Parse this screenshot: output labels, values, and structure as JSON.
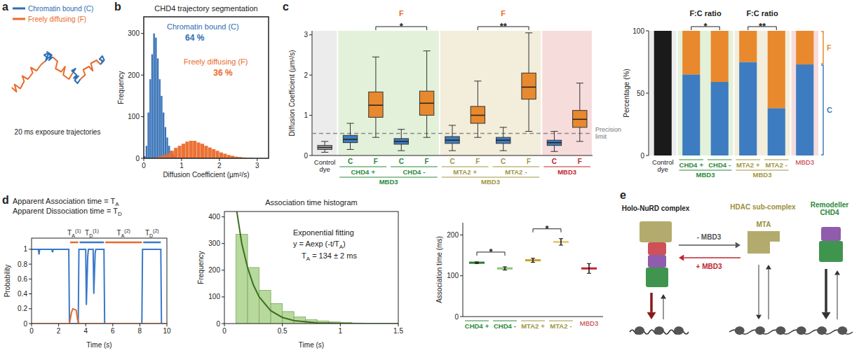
{
  "chart_data": [
    {
      "type": "trajectory",
      "panel_label": "a",
      "tick_labels": false,
      "xlim": [
        0,
        100
      ],
      "ylim": [
        0,
        80
      ],
      "series": [
        {
          "name": "Chromatin bound (C)",
          "color": "#2e6db4",
          "segments": [
            {
              "x": [
                37,
                40,
                36,
                41,
                38,
                43,
                39,
                44,
                41,
                45
              ],
              "y": [
                55,
                58,
                61,
                63,
                57,
                60,
                64,
                61,
                56,
                59
              ]
            },
            {
              "x": [
                66,
                69,
                65,
                70,
                67,
                72,
                68,
                71,
                74
              ],
              "y": [
                44,
                48,
                46,
                42,
                39,
                41,
                37,
                34,
                38
              ]
            },
            {
              "x": [
                95,
                98,
                94,
                97,
                99,
                96
              ],
              "y": [
                52,
                55,
                57,
                60,
                56,
                54
              ]
            }
          ]
        },
        {
          "name": "Freely diffusing (F)",
          "color": "#ea6a2a",
          "segments": [
            {
              "x": [
                2,
                7,
                5,
                11,
                15,
                13,
                19,
                24,
                22,
                28,
                33,
                37
              ],
              "y": [
                30,
                26,
                33,
                29,
                36,
                41,
                38,
                44,
                49,
                46,
                52,
                55
              ]
            },
            {
              "x": [
                45,
                50,
                48,
                54,
                58,
                56,
                62,
                66
              ],
              "y": [
                59,
                55,
                48,
                45,
                50,
                42,
                38,
                44
              ]
            },
            {
              "x": [
                74,
                79,
                77,
                83,
                87,
                85,
                91,
                95
              ],
              "y": [
                38,
                42,
                47,
                50,
                46,
                53,
                56,
                52
              ]
            }
          ]
        }
      ],
      "caption": "20 ms exposure trajectories"
    },
    {
      "type": "histogram",
      "panel_label": "b",
      "title": "CHD4 trajectory segmentation",
      "x_label": "Diffusion Coefficient (µm²/s)",
      "y_label": "Frequency",
      "xlim": [
        0,
        3.3
      ],
      "ylim": [
        0,
        340
      ],
      "xticks": [
        0,
        1,
        2,
        3
      ],
      "yticks": [
        0,
        100,
        200,
        300
      ],
      "series": [
        {
          "name": "Chromatin bound (C)",
          "share_label": "64 %",
          "color": "#2e6db4",
          "bins": [
            0,
            0.05,
            0.1,
            0.15,
            0.2,
            0.25,
            0.3,
            0.35,
            0.4,
            0.45,
            0.5,
            0.55,
            0.6,
            0.65,
            0.7,
            0.75,
            0.8,
            0.85,
            0.9
          ],
          "values": [
            5,
            30,
            110,
            190,
            250,
            300,
            290,
            240,
            190,
            150,
            110,
            75,
            50,
            30,
            18,
            10,
            5,
            2
          ]
        },
        {
          "name": "Freely diffusing (F)",
          "share_label": "36 %",
          "color": "#ea6a2a",
          "bins": [
            0.3,
            0.4,
            0.5,
            0.6,
            0.7,
            0.8,
            0.9,
            1,
            1.1,
            1.2,
            1.3,
            1.4,
            1.5,
            1.6,
            1.7,
            1.8,
            1.9,
            2,
            2.1,
            2.2,
            2.3,
            2.4,
            2.5,
            2.6,
            2.7,
            2.8,
            2.9
          ],
          "values": [
            3,
            5,
            8,
            12,
            18,
            25,
            30,
            35,
            40,
            42,
            42,
            38,
            35,
            30,
            26,
            22,
            18,
            14,
            11,
            8,
            6,
            4,
            3,
            2,
            1,
            1
          ]
        }
      ]
    },
    {
      "type": "box",
      "panel_label": "c",
      "y_label": "Diffusion Coefficient (µm²/s)",
      "ylim": [
        0,
        3.1
      ],
      "yticks": [
        0,
        1,
        2,
        3
      ],
      "reference_line": {
        "value": 0.55,
        "label": "Precision limit"
      },
      "groups": [
        {
          "label": "Control dye",
          "color": "#222222",
          "background": "#ececec",
          "subgroups": [
            {
              "sign": null,
              "boxes": [
                {
                  "label": null,
                  "color": "#a6a6a6",
                  "whisker_low": 0.08,
                  "q1": 0.15,
                  "median": 0.2,
                  "q3": 0.25,
                  "whisker_high": 0.35
                }
              ]
            }
          ]
        },
        {
          "label": "CHD4",
          "condition": "MBD3",
          "color": "#2a8a3a",
          "background": "#e3f1da",
          "significance": {
            "label": "F",
            "stars": "*",
            "color": "#ea6a2a"
          },
          "subgroups": [
            {
              "sign": "+",
              "boxes": [
                {
                  "label": "C",
                  "color": "#3d7cc0",
                  "whisker_low": 0.15,
                  "q1": 0.32,
                  "median": 0.4,
                  "q3": 0.5,
                  "whisker_high": 0.8
                },
                {
                  "label": "F",
                  "color": "#e8892e",
                  "whisker_low": 0.45,
                  "q1": 0.95,
                  "median": 1.25,
                  "q3": 1.58,
                  "whisker_high": 2.45
                }
              ]
            },
            {
              "sign": "-",
              "boxes": [
                {
                  "label": "C",
                  "color": "#3d7cc0",
                  "whisker_low": 0.12,
                  "q1": 0.28,
                  "median": 0.35,
                  "q3": 0.42,
                  "whisker_high": 0.65
                },
                {
                  "label": "F",
                  "color": "#e8892e",
                  "whisker_low": 0.45,
                  "q1": 1.0,
                  "median": 1.3,
                  "q3": 1.6,
                  "whisker_high": 2.6
                }
              ]
            }
          ]
        },
        {
          "label": "MTA2",
          "condition": "MBD3",
          "color": "#a0963f",
          "background": "#f2eedb",
          "significance": {
            "label": "F",
            "stars": "**",
            "color": "#ea6a2a"
          },
          "subgroups": [
            {
              "sign": "+",
              "boxes": [
                {
                  "label": "C",
                  "color": "#3d7cc0",
                  "whisker_low": 0.12,
                  "q1": 0.3,
                  "median": 0.38,
                  "q3": 0.47,
                  "whisker_high": 0.75
                },
                {
                  "label": "F",
                  "color": "#e8892e",
                  "whisker_low": 0.45,
                  "q1": 0.8,
                  "median": 1.0,
                  "q3": 1.22,
                  "whisker_high": 1.85
                }
              ]
            },
            {
              "sign": "-",
              "boxes": [
                {
                  "label": "C",
                  "color": "#3d7cc0",
                  "whisker_low": 0.12,
                  "q1": 0.3,
                  "median": 0.38,
                  "q3": 0.45,
                  "whisker_high": 0.7
                },
                {
                  "label": "F",
                  "color": "#e8892e",
                  "whisker_low": 0.6,
                  "q1": 1.4,
                  "median": 1.7,
                  "q3": 2.05,
                  "whisker_high": 3.05
                }
              ]
            }
          ]
        },
        {
          "label": "MBD3",
          "color": "#c0262d",
          "background": "#f7dcdc",
          "subgroups": [
            {
              "sign": null,
              "boxes": [
                {
                  "label": "C",
                  "color": "#3d7cc0",
                  "whisker_low": 0.1,
                  "q1": 0.25,
                  "median": 0.32,
                  "q3": 0.38,
                  "whisker_high": 0.6
                },
                {
                  "label": "F",
                  "color": "#e8892e",
                  "whisker_low": 0.35,
                  "q1": 0.7,
                  "median": 0.9,
                  "q3": 1.12,
                  "whisker_high": 1.8
                }
              ]
            }
          ]
        }
      ]
    },
    {
      "type": "bar",
      "stacked": true,
      "legend": "right",
      "y_label": "Percentage (%)",
      "ylim": [
        0,
        100
      ],
      "yticks": [
        0,
        50,
        100
      ],
      "series": [
        {
          "name": "C",
          "color": "#3d7cc0"
        },
        {
          "name": "F",
          "color": "#e8892e"
        }
      ],
      "groups": [
        {
          "label": "Control dye",
          "color": "#222222",
          "background": "#ececec",
          "subgroups": [
            {
              "sign": null,
              "values": [
                100
              ],
              "colors": [
                "#1a1a1a"
              ]
            }
          ]
        },
        {
          "label": "CHD4",
          "condition": "MBD3",
          "color": "#2a8a3a",
          "background": "#e3f1da",
          "significance": {
            "label": "F:C ratio",
            "stars": "*",
            "color": "#222222"
          },
          "subgroups": [
            {
              "sign": "+",
              "values": [
                65,
                35
              ]
            },
            {
              "sign": "-",
              "values": [
                59,
                41
              ]
            }
          ]
        },
        {
          "label": "MTA2",
          "condition": "MBD3",
          "color": "#a0963f",
          "background": "#f2eedb",
          "significance": {
            "label": "F:C ratio",
            "stars": "**",
            "color": "#222222"
          },
          "subgroups": [
            {
              "sign": "+",
              "values": [
                75,
                25
              ]
            },
            {
              "sign": "-",
              "values": [
                38,
                62
              ]
            }
          ]
        },
        {
          "label": "MBD3",
          "color": "#c0262d",
          "background": "#f7dcdc",
          "subgroups": [
            {
              "sign": null,
              "values": [
                73,
                27
              ]
            }
          ]
        }
      ]
    },
    {
      "type": "point",
      "y_label": "Association time (ms)",
      "ylim": [
        0,
        230
      ],
      "yticks": [
        0,
        100,
        200
      ],
      "groups": [
        {
          "label": "CHD4",
          "color": "#2a8a3a",
          "significance": {
            "stars": "*"
          },
          "subgroups": [
            {
              "sign": "+",
              "color": "#2a7a30",
              "value": 132,
              "error": 2
            },
            {
              "sign": "-",
              "color": "#8cc47a",
              "value": 118,
              "error": 4
            }
          ]
        },
        {
          "label": "MTA2",
          "color": "#a0963f",
          "significance": {
            "stars": "*"
          },
          "subgroups": [
            {
              "sign": "+",
              "color": "#c9a227",
              "value": 138,
              "error": 5
            },
            {
              "sign": "-",
              "color": "#e6cd78",
              "value": 183,
              "error": 8
            }
          ]
        },
        {
          "label": "MBD3",
          "color": "#c0262d",
          "subgroups": [
            {
              "sign": null,
              "color": "#c0262d",
              "value": 118,
              "error": 12
            }
          ]
        }
      ]
    },
    {
      "type": "line",
      "panel_label": "d",
      "annotations": [
        {
          "text": "Apparent Association time = T",
          "sub": "A"
        },
        {
          "text": "Apparent Dissociation time = T",
          "sub": "D"
        }
      ],
      "x_label": "Time (s)",
      "y_label": "Probability",
      "xlim": [
        0,
        10
      ],
      "ylim": [
        0,
        1.15
      ],
      "xticks": [
        0,
        2,
        4,
        6,
        8,
        10
      ],
      "yticks": [
        0,
        0.2,
        0.4,
        0.6,
        0.8,
        1
      ],
      "series": [
        {
          "color": "#3a78c8",
          "x": [
            0,
            0.5,
            0.55,
            0.6,
            1.5,
            1.55,
            1.6,
            2.75,
            2.8,
            3.45,
            3.5,
            4.0,
            4.05,
            4.15,
            4.2,
            4.55,
            4.6,
            4.7,
            4.75,
            5.35,
            5.4,
            8.15,
            8.2,
            9.55,
            9.6,
            10
          ],
          "values": [
            1,
            1,
            0.93,
            1,
            1,
            0.96,
            1,
            1,
            0,
            0,
            1,
            1,
            0.25,
            0.9,
            1,
            1,
            0.4,
            0.95,
            1,
            1,
            0,
            0,
            1,
            1,
            0,
            0
          ]
        },
        {
          "color": "#ea6a2a",
          "x": [
            0,
            2.8,
            2.95,
            3.05,
            3.3,
            3.4,
            3.5,
            10
          ],
          "values": [
            0,
            0,
            0.15,
            0.2,
            0.18,
            0.05,
            0,
            0
          ]
        }
      ],
      "intervals": [
        {
          "text": "T",
          "sub": "A",
          "sup": "(1)",
          "start": 2.8,
          "end": 3.5,
          "color": "#ea6a2a"
        },
        {
          "text": "T",
          "sub": "D",
          "sup": "(1)",
          "start": 3.5,
          "end": 5.4,
          "color": "#3a78c8"
        },
        {
          "text": "T",
          "sub": "A",
          "sup": "(2)",
          "start": 5.4,
          "end": 8.2,
          "color": "#ea6a2a"
        },
        {
          "text": "T",
          "sub": "D",
          "sup": "(2)",
          "start": 8.2,
          "end": 9.6,
          "color": "#3a78c8"
        }
      ]
    },
    {
      "type": "histogram",
      "title": "Association time histogram",
      "x_label": "Time (s)",
      "y_label": "Frequency",
      "xlim": [
        0,
        1.5
      ],
      "ylim": [
        0,
        420
      ],
      "xticks": [
        0,
        0.5,
        1,
        1.5
      ],
      "yticks": [
        0,
        100,
        200,
        300,
        400
      ],
      "color": "#b7d99c",
      "bins": [
        0.1,
        0.2,
        0.3,
        0.4,
        0.5,
        0.6,
        0.7,
        0.8,
        0.9,
        1.0,
        1.1,
        1.2,
        1.3
      ],
      "values": [
        335,
        210,
        125,
        75,
        45,
        25,
        15,
        10,
        6,
        4,
        2,
        1
      ],
      "fit": {
        "label": "Exponential fitting",
        "equation": {
          "text": "y = Aexp (-t/T",
          "sub": "A",
          "after": ")"
        },
        "result": {
          "text": "T",
          "sub": "A",
          "after": " = 134 ± 2 ms"
        },
        "color": "#3f6e22",
        "x": [
          0.1,
          0.15,
          0.2,
          0.25,
          0.3,
          0.4,
          0.5,
          0.6,
          0.8,
          1.0,
          1.2,
          1.5
        ],
        "values": [
          440,
          300,
          210,
          145,
          100,
          48,
          23,
          11,
          2.5,
          0.6,
          0.1,
          0
        ]
      }
    }
  ],
  "diagram": {
    "panel_label": "e",
    "complexes": [
      {
        "label": "Holo-NuRD complex",
        "color": "#222222"
      },
      {
        "label": "HDAC sub-complex",
        "sub_label": "MTA",
        "color": "#9a8f3c"
      },
      {
        "label": "Remodeller CHD4",
        "color": "#2a8a3a"
      }
    ],
    "arrows": [
      {
        "label": "- MBD3",
        "color": "#555555"
      },
      {
        "label": "+ MBD3",
        "color": "#c0262d"
      }
    ]
  }
}
